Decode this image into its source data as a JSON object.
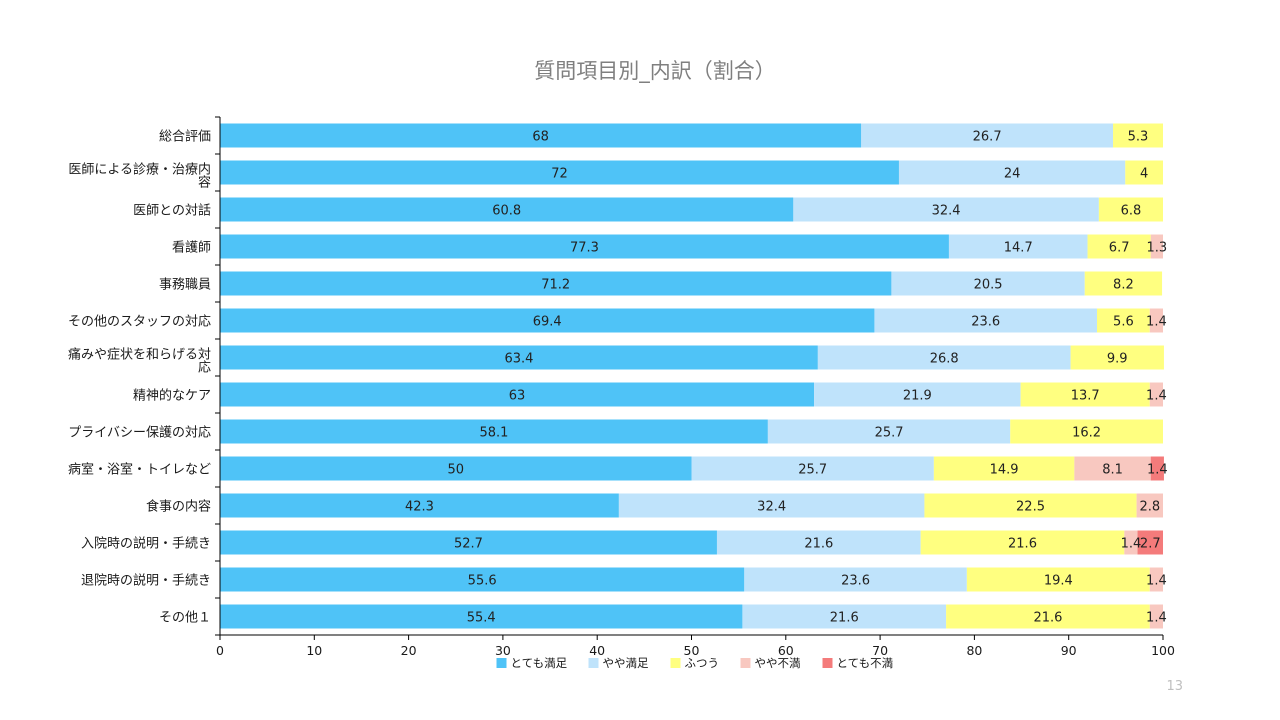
{
  "page_number": "13",
  "chart_data": {
    "type": "bar",
    "orientation": "horizontal",
    "stacked": true,
    "title": "質問項目別_内訳（割合）",
    "xlabel": "",
    "ylabel": "",
    "xlim": [
      0,
      100
    ],
    "xticks": [
      "0",
      "10",
      "20",
      "30",
      "40",
      "50",
      "60",
      "70",
      "80",
      "90",
      "100"
    ],
    "grid": false,
    "legend_position": "bottom",
    "categories": [
      "総合評価",
      "医師による診療・治療内容",
      "医師との対話",
      "看護師",
      "事務職員",
      "その他のスタッフの対応",
      "痛みや症状を和らげる対応",
      "精神的なケア",
      "プライバシー保護の対応",
      "病室・浴室・トイレなど",
      "食事の内容",
      "入院時の説明・手続き",
      "退院時の説明・手続き",
      "その他１"
    ],
    "series": [
      {
        "name": "とても満足",
        "color": "#4fc3f7",
        "values": [
          68,
          72,
          60.8,
          77.3,
          71.2,
          69.4,
          63.4,
          63,
          58.1,
          50,
          42.3,
          52.7,
          55.6,
          55.4
        ]
      },
      {
        "name": "やや満足",
        "color": "#bfe3fb",
        "values": [
          26.7,
          24,
          32.4,
          14.7,
          20.5,
          23.6,
          26.8,
          21.9,
          25.7,
          25.7,
          32.4,
          21.6,
          23.6,
          21.6
        ]
      },
      {
        "name": "ふつう",
        "color": "#ffff80",
        "values": [
          5.3,
          4,
          6.8,
          6.7,
          8.2,
          5.6,
          9.9,
          13.7,
          16.2,
          14.9,
          22.5,
          21.6,
          19.4,
          21.6
        ]
      },
      {
        "name": "やや不満",
        "color": "#f8c8c0",
        "values": [
          0,
          0,
          0,
          1.3,
          0,
          1.4,
          0,
          1.4,
          0,
          8.1,
          2.8,
          1.4,
          1.4,
          1.4
        ]
      },
      {
        "name": "とても不満",
        "color": "#f47b7b",
        "values": [
          0,
          0,
          0,
          0,
          0,
          0,
          0,
          0,
          0,
          1.4,
          0,
          2.7,
          0,
          0
        ]
      }
    ]
  }
}
